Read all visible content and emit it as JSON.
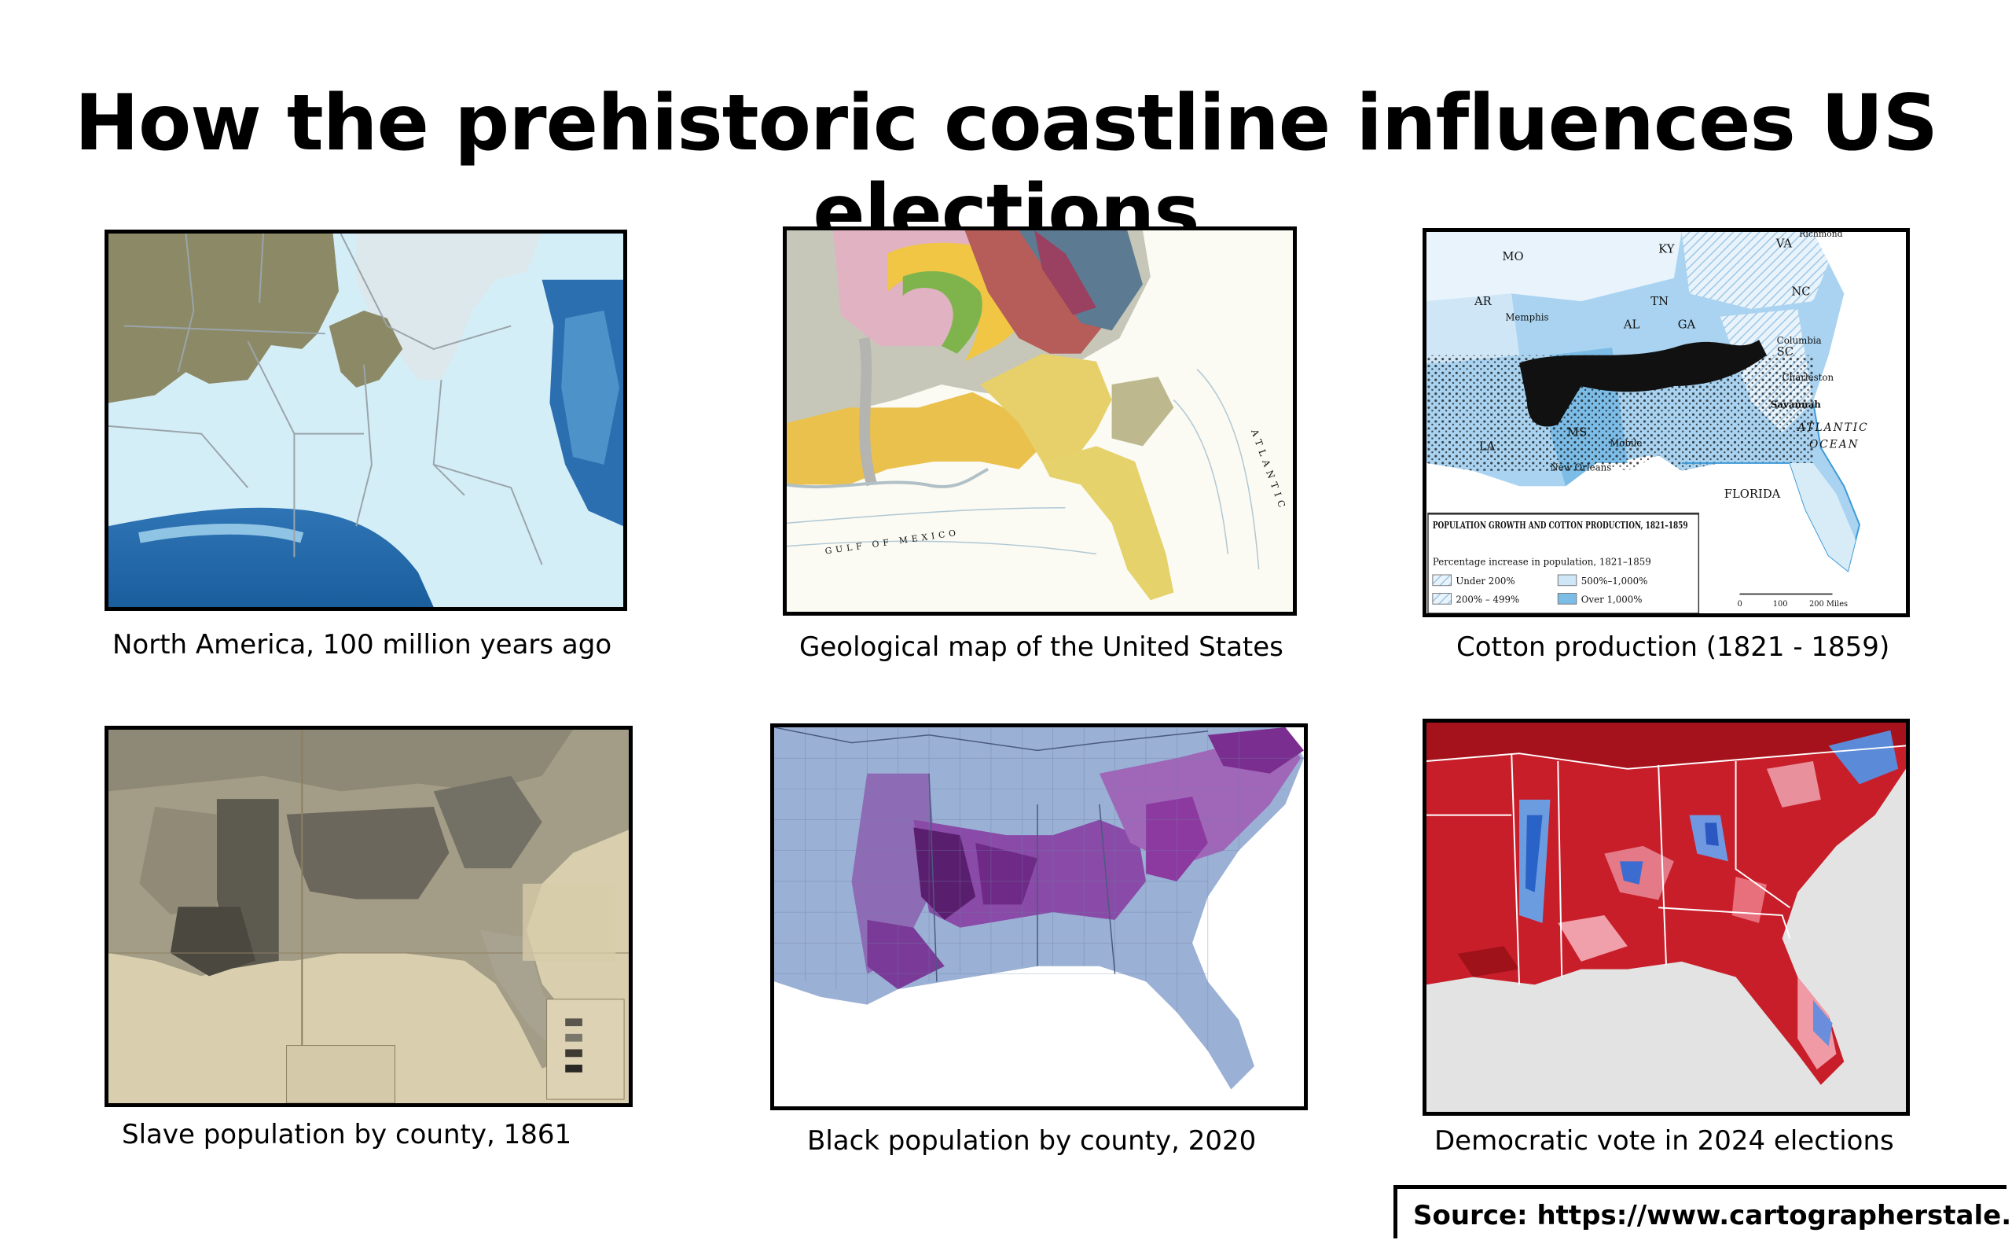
{
  "title": "How the prehistoric coastline influences US elections",
  "panels": [
    {
      "caption": "North America, 100 million years ago",
      "image": "paleogeographic-map"
    },
    {
      "caption": "Geological map of the United States",
      "image": "geological-map"
    },
    {
      "caption": "Cotton production (1821 - 1859)",
      "image": "cotton-production-map"
    },
    {
      "caption": "Slave population by county, 1861",
      "image": "slave-population-map"
    },
    {
      "caption": "Black population by county, 2020",
      "image": "black-population-map"
    },
    {
      "caption": "Democratic vote in 2024 elections",
      "image": "democratic-vote-map"
    }
  ],
  "cotton_map": {
    "states": [
      "MO",
      "KY",
      "VA",
      "NC",
      "TN",
      "AR",
      "AL",
      "GA",
      "SC",
      "MS",
      "LA",
      "FLORIDA"
    ],
    "cities": [
      "Memphis",
      "Columbia",
      "Charleston",
      "Savannah",
      "Mobile",
      "New Orleans",
      "Richmond"
    ],
    "ocean_labels": [
      "ATLANTIC",
      "OCEAN"
    ],
    "legend_title": "POPULATION GROWTH AND COTTON PRODUCTION, 1821–1859",
    "legend_subtitle": "Percentage increase in population, 1821–1859",
    "legend_items": [
      "Under 200%",
      "500%–1,000%",
      "200% – 499%",
      "Over 1,000%"
    ],
    "scale": [
      "0",
      "100",
      "200 Miles"
    ]
  },
  "geo_map": {
    "gulf_label": "GULF OF MEXICO",
    "ocean_label": "ATLANTIC"
  },
  "source": "Source: https://www.cartographerstale.com/"
}
